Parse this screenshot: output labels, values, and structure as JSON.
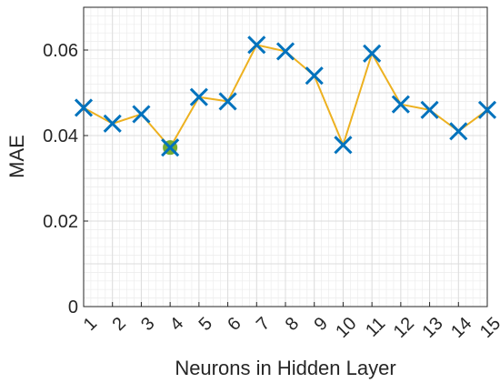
{
  "chart_data": {
    "type": "line",
    "xlabel": "Neurons in Hidden Layer",
    "ylabel": "MAE",
    "x": [
      1,
      2,
      3,
      4,
      5,
      6,
      7,
      8,
      9,
      10,
      11,
      12,
      13,
      14,
      15
    ],
    "xticks": [
      "1",
      "2",
      "3",
      "4",
      "5",
      "6",
      "7",
      "8",
      "9",
      "10",
      "11",
      "12",
      "13",
      "14",
      "15"
    ],
    "yticks": [
      "0",
      "0.02",
      "0.04",
      "0.06"
    ],
    "ytick_values": [
      0,
      0.02,
      0.04,
      0.06
    ],
    "ylim": [
      0,
      0.07
    ],
    "xlim": [
      1,
      15
    ],
    "grid": true,
    "series": [
      {
        "values": [
          0.0465,
          0.0428,
          0.045,
          0.0372,
          0.049,
          0.048,
          0.0612,
          0.0597,
          0.054,
          0.0378,
          0.0592,
          0.0473,
          0.046,
          0.041,
          0.046
        ],
        "line_color": "#EDB120",
        "marker": "x",
        "marker_color": "#0072BD"
      }
    ],
    "highlight": {
      "x": 4,
      "value": 0.0372,
      "color": "#77AC30"
    }
  }
}
